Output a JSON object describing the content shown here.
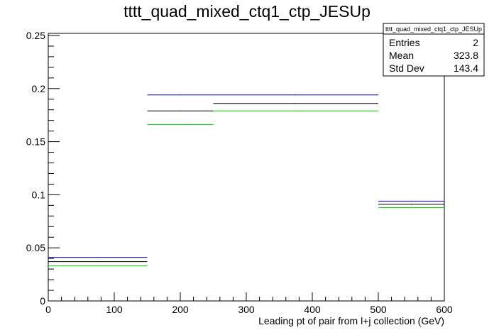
{
  "chart_data": {
    "type": "histogram",
    "title": "tttt_quad_mixed_ctq1_ctp_JESUp",
    "xlabel": "Leading pt of pair from l+j collection (GeV)",
    "ylabel": "",
    "xlim": [
      0,
      600
    ],
    "ylim": [
      0,
      0.252
    ],
    "bin_edges": [
      0,
      150,
      250,
      500,
      600
    ],
    "x_ticks": [
      0,
      100,
      200,
      300,
      400,
      500,
      600
    ],
    "x_tick_labels": [
      "0",
      "100",
      "200",
      "300",
      "400",
      "500",
      "600"
    ],
    "y_ticks": [
      0,
      0.05,
      0.1,
      0.15,
      0.2,
      0.25
    ],
    "y_tick_labels": [
      "0",
      "0.05",
      "0.1",
      "0.15",
      "0.2",
      "0.25"
    ],
    "grid": false,
    "series": [
      {
        "color": "#0000cc",
        "values": [
          0.041,
          0.194,
          0.194,
          0.094
        ]
      },
      {
        "color": "#000000",
        "values": [
          0.037,
          0.179,
          0.186,
          0.091
        ]
      },
      {
        "color": "#00cc00",
        "values": [
          0.033,
          0.166,
          0.179,
          0.088
        ]
      }
    ],
    "stats_box": {
      "title": "tttt_quad_mixed_ctq1_ctp_JESUp",
      "rows": [
        {
          "label": "Entries",
          "value": "2"
        },
        {
          "label": "Mean",
          "value": "323.8"
        },
        {
          "label": "Std Dev",
          "value": "143.4"
        }
      ]
    }
  }
}
